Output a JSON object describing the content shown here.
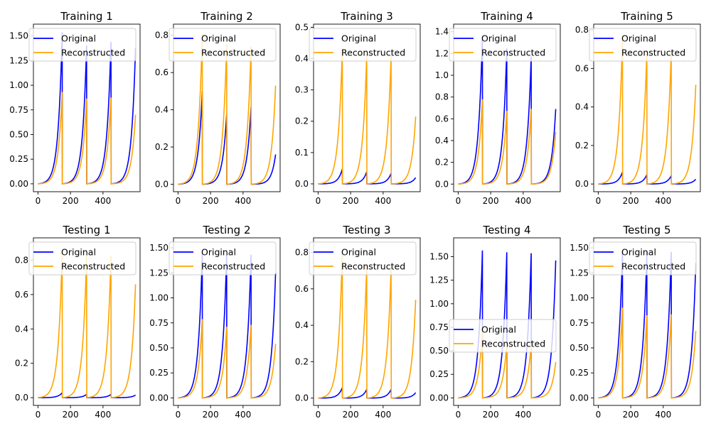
{
  "colors": {
    "original": "#0000ff",
    "reconstructed": "#ffa500"
  },
  "legend_labels": [
    "Original",
    "Reconstructed"
  ],
  "chart_data": [
    {
      "type": "line",
      "title": "Training 1",
      "x_range": [
        0,
        600
      ],
      "ylim": [
        -0.08,
        1.62
      ],
      "xticks": [
        0,
        200,
        400
      ],
      "yticks": [
        "0.00",
        "0.25",
        "0.50",
        "0.75",
        "1.00",
        "1.25",
        "1.50"
      ],
      "legend": "top-right",
      "series": [
        {
          "name": "Original",
          "peaks": [
            1.6,
            1.46,
            1.5
          ],
          "end": 1.38
        },
        {
          "name": "Reconstructed",
          "peaks": [
            0.97,
            0.9,
            0.91
          ],
          "end": 0.7
        }
      ]
    },
    {
      "type": "line",
      "title": "Training 2",
      "x_range": [
        0,
        600
      ],
      "ylim": [
        -0.04,
        0.86
      ],
      "xticks": [
        0,
        200,
        400
      ],
      "yticks": [
        "0.0",
        "0.2",
        "0.4",
        "0.6",
        "0.8"
      ],
      "legend": "top-right",
      "series": [
        {
          "name": "Original",
          "peaks": [
            0.52,
            0.39,
            0.43
          ],
          "end": 0.16
        },
        {
          "name": "Reconstructed",
          "peaks": [
            0.84,
            0.78,
            0.77
          ],
          "end": 0.53
        }
      ]
    },
    {
      "type": "line",
      "title": "Training 3",
      "x_range": [
        0,
        600
      ],
      "ylim": [
        -0.025,
        0.51
      ],
      "xticks": [
        0,
        200,
        400
      ],
      "yticks": [
        "0.0",
        "0.1",
        "0.2",
        "0.3",
        "0.4",
        "0.5"
      ],
      "legend": "top-right",
      "series": [
        {
          "name": "Original",
          "peaks": [
            0.05,
            0.04,
            0.035
          ],
          "end": 0.02
        },
        {
          "name": "Reconstructed",
          "peaks": [
            0.45,
            0.43,
            0.43
          ],
          "end": 0.215
        }
      ]
    },
    {
      "type": "line",
      "title": "Training 4",
      "x_range": [
        0,
        600
      ],
      "ylim": [
        -0.07,
        1.47
      ],
      "xticks": [
        0,
        200,
        400
      ],
      "yticks": [
        "0.0",
        "0.2",
        "0.4",
        "0.6",
        "0.8",
        "1.0",
        "1.2",
        "1.4"
      ],
      "legend": "top-right",
      "series": [
        {
          "name": "Original",
          "peaks": [
            1.42,
            1.3,
            1.22
          ],
          "end": 0.69
        },
        {
          "name": "Reconstructed",
          "peaks": [
            0.81,
            0.7,
            0.72
          ],
          "end": 0.48
        }
      ]
    },
    {
      "type": "line",
      "title": "Training 5",
      "x_range": [
        0,
        600
      ],
      "ylim": [
        -0.04,
        0.83
      ],
      "xticks": [
        0,
        200,
        400
      ],
      "yticks": [
        "0.0",
        "0.2",
        "0.4",
        "0.6",
        "0.8"
      ],
      "legend": "top-right",
      "series": [
        {
          "name": "Original",
          "peaks": [
            0.065,
            0.05,
            0.045
          ],
          "end": 0.025
        },
        {
          "name": "Reconstructed",
          "peaks": [
            0.78,
            0.72,
            0.72
          ],
          "end": 0.515
        }
      ]
    },
    {
      "type": "line",
      "title": "Testing 1",
      "x_range": [
        0,
        600
      ],
      "ylim": [
        -0.045,
        0.93
      ],
      "xticks": [
        0,
        200,
        400
      ],
      "yticks": [
        "0.0",
        "0.2",
        "0.4",
        "0.6",
        "0.8"
      ],
      "legend": "top-right",
      "series": [
        {
          "name": "Original",
          "peaks": [
            0.03,
            0.02,
            0.02
          ],
          "end": 0.015
        },
        {
          "name": "Reconstructed",
          "peaks": [
            0.88,
            0.86,
            0.86
          ],
          "end": 0.66
        }
      ]
    },
    {
      "type": "line",
      "title": "Testing 2",
      "x_range": [
        0,
        600
      ],
      "ylim": [
        -0.075,
        1.6
      ],
      "xticks": [
        0,
        200,
        400
      ],
      "yticks": [
        "0.00",
        "0.25",
        "0.50",
        "0.75",
        "1.00",
        "1.25",
        "1.50"
      ],
      "legend": "top-right",
      "series": [
        {
          "name": "Original",
          "peaks": [
            1.5,
            1.49,
            1.49
          ],
          "end": 1.25
        },
        {
          "name": "Reconstructed",
          "peaks": [
            0.82,
            0.74,
            0.76
          ],
          "end": 0.54
        }
      ]
    },
    {
      "type": "line",
      "title": "Testing 3",
      "x_range": [
        0,
        600
      ],
      "ylim": [
        -0.04,
        0.88
      ],
      "xticks": [
        0,
        200,
        400
      ],
      "yticks": [
        "0.0",
        "0.2",
        "0.4",
        "0.6",
        "0.8"
      ],
      "legend": "top-right",
      "series": [
        {
          "name": "Original",
          "peaks": [
            0.06,
            0.05,
            0.05
          ],
          "end": 0.03
        },
        {
          "name": "Reconstructed",
          "peaks": [
            0.84,
            0.76,
            0.75
          ],
          "end": 0.54
        }
      ]
    },
    {
      "type": "line",
      "title": "Testing 4",
      "x_range": [
        0,
        600
      ],
      "ylim": [
        -0.08,
        1.7
      ],
      "xticks": [
        0,
        200,
        400
      ],
      "yticks": [
        "0.00",
        "0.25",
        "0.50",
        "0.75",
        "1.00",
        "1.25",
        "1.50"
      ],
      "legend": "center-right",
      "series": [
        {
          "name": "Original",
          "peaks": [
            1.63,
            1.61,
            1.6
          ],
          "end": 1.46
        },
        {
          "name": "Reconstructed",
          "peaks": [
            0.75,
            0.6,
            0.6
          ],
          "end": 0.38
        }
      ]
    },
    {
      "type": "line",
      "title": "Testing 5",
      "x_range": [
        0,
        600
      ],
      "ylim": [
        -0.075,
        1.6
      ],
      "xticks": [
        0,
        200,
        400
      ],
      "yticks": [
        "0.00",
        "0.25",
        "0.50",
        "0.75",
        "1.00",
        "1.25",
        "1.50"
      ],
      "legend": "top-right",
      "series": [
        {
          "name": "Original",
          "peaks": [
            1.53,
            1.52,
            1.52
          ],
          "end": 1.35
        },
        {
          "name": "Reconstructed",
          "peaks": [
            0.94,
            0.86,
            0.87
          ],
          "end": 0.67
        }
      ]
    }
  ]
}
